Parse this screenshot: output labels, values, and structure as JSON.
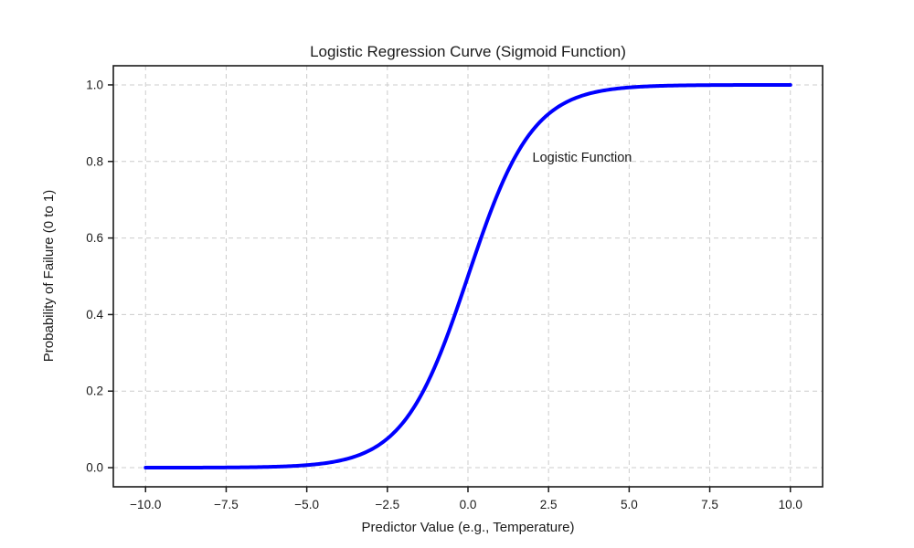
{
  "chart_data": {
    "type": "line",
    "title": "Logistic Regression Curve (Sigmoid Function)",
    "xlabel": "Predictor Value (e.g., Temperature)",
    "ylabel": "Probability of Failure (0 to 1)",
    "xlim": [
      -11,
      11
    ],
    "ylim": [
      -0.05,
      1.05
    ],
    "x_ticks": {
      "values": [
        -10,
        -7.5,
        -5,
        -2.5,
        0,
        2.5,
        5,
        7.5,
        10
      ],
      "labels": [
        "−10.0",
        "−7.5",
        "−5.0",
        "−2.5",
        "0.0",
        "2.5",
        "5.0",
        "7.5",
        "10.0"
      ]
    },
    "y_ticks": {
      "values": [
        0.0,
        0.2,
        0.4,
        0.6,
        0.8,
        1.0
      ],
      "labels": [
        "0.0",
        "0.2",
        "0.4",
        "0.6",
        "0.8",
        "1.0"
      ]
    },
    "grid": {
      "visible": true,
      "style": "dashed",
      "color": "#cccccc"
    },
    "spine_color": "#1a1a1a",
    "series": [
      {
        "name": "Logistic Function",
        "color": "#0000ff",
        "line_width": 4,
        "formula": "y = 1 / (1 + exp(-x))",
        "function": {
          "type": "logistic",
          "L": 1,
          "k": 1,
          "x0": 0
        },
        "x_range": [
          -10,
          10
        ],
        "samples": 400,
        "sample_points": {
          "x": [
            -10,
            -9,
            -8,
            -7,
            -6,
            -5,
            -4,
            -3,
            -2,
            -1,
            0,
            1,
            2,
            3,
            4,
            5,
            6,
            7,
            8,
            9,
            10
          ],
          "y": [
            4.5e-05,
            0.000123,
            0.000335,
            0.000911,
            0.002473,
            0.006693,
            0.017986,
            0.047426,
            0.119203,
            0.268941,
            0.5,
            0.731059,
            0.880797,
            0.952574,
            0.982014,
            0.993307,
            0.997527,
            0.999089,
            0.999665,
            0.999877,
            0.999955
          ]
        }
      }
    ],
    "annotation": {
      "text": "Logistic Function",
      "x": 2.0,
      "y": 0.8,
      "color": "#0000ff"
    }
  }
}
